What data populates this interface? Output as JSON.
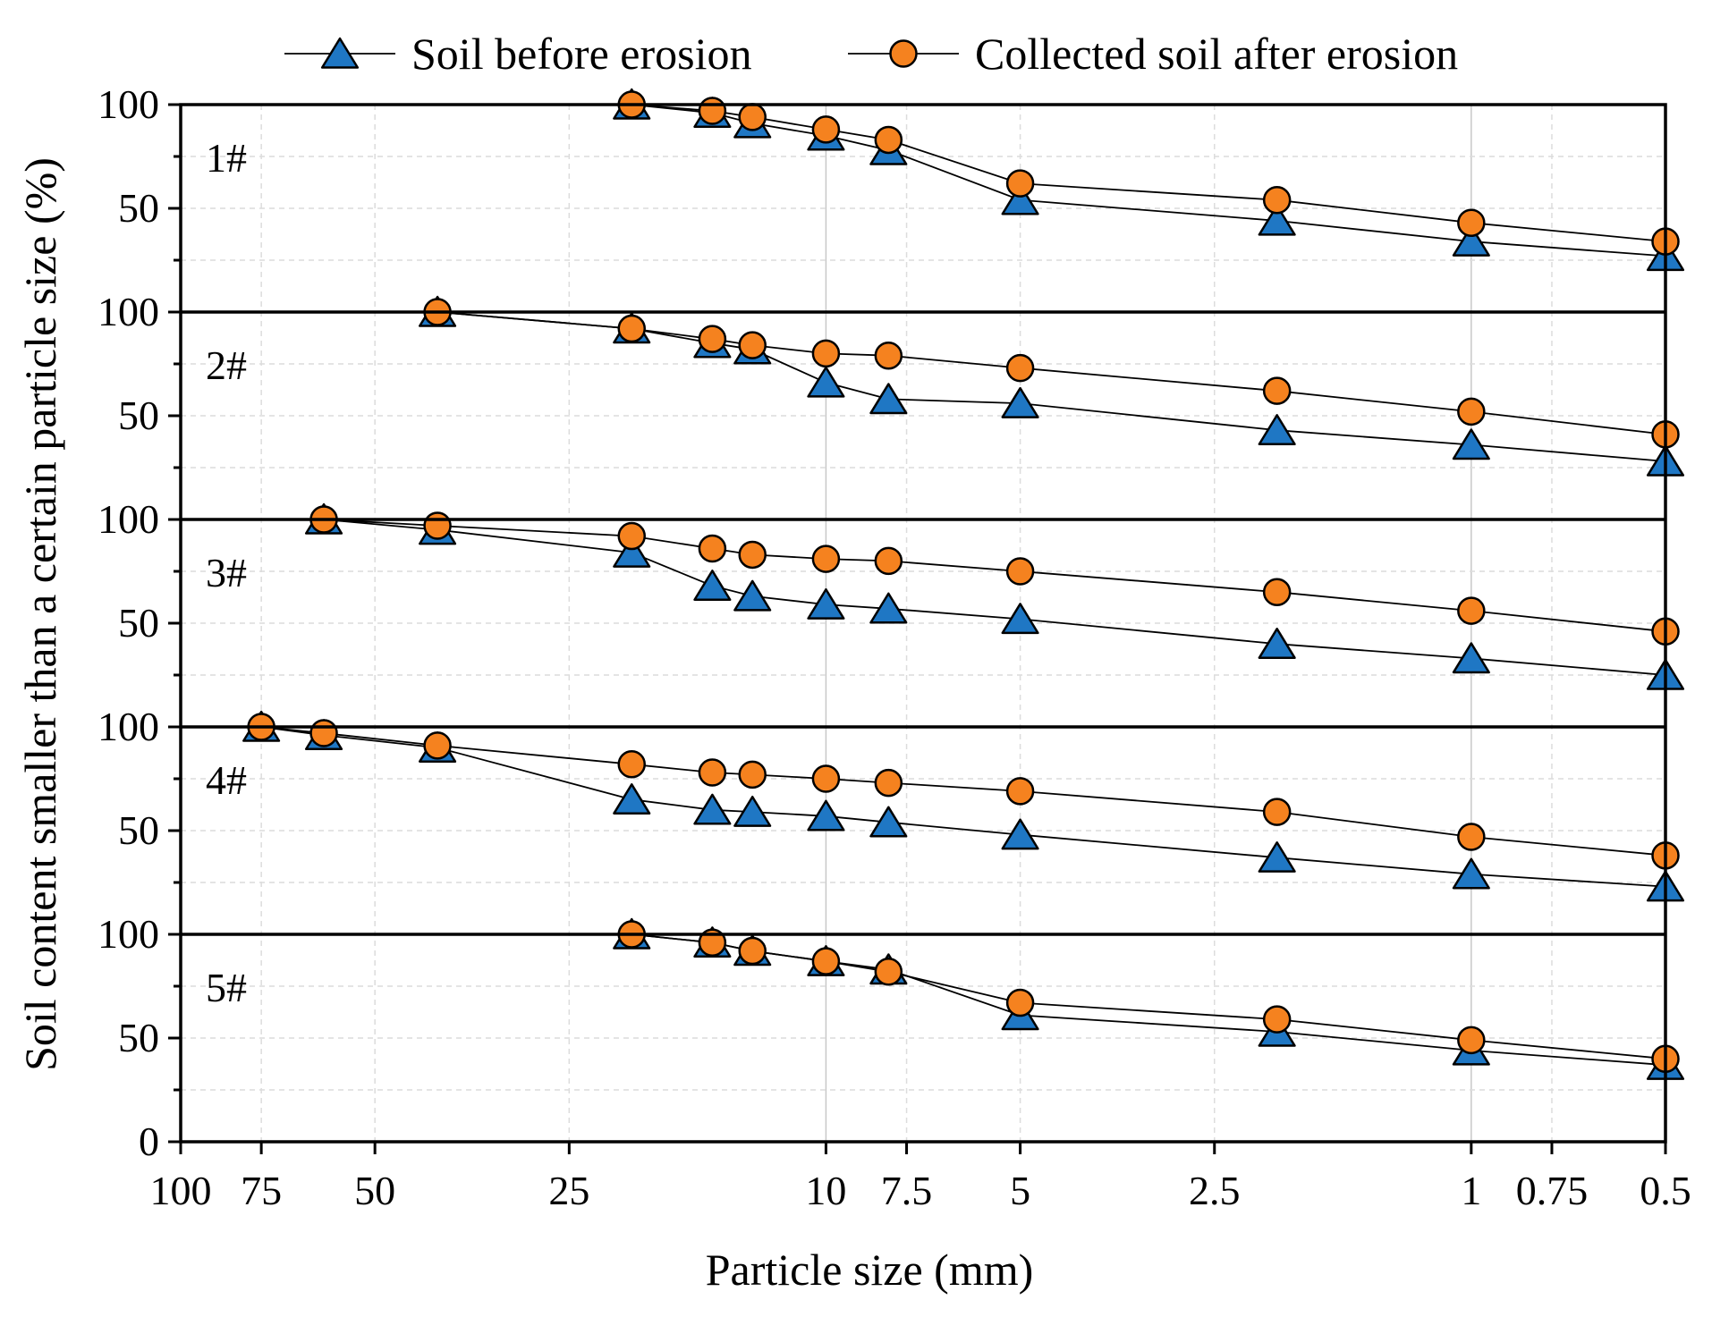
{
  "chart_data": {
    "type": "line",
    "xlabel": "Particle size (mm)",
    "ylabel": "Soil content smaller than a certain particle size (%)",
    "x_scale": "log",
    "x_reversed": true,
    "xlim": [
      100,
      0.5
    ],
    "x_ticks": [
      {
        "value": 100,
        "label": "100"
      },
      {
        "value": 75,
        "label": "75"
      },
      {
        "value": 50,
        "label": "50"
      },
      {
        "value": 25,
        "label": "25"
      },
      {
        "value": 10,
        "label": "10"
      },
      {
        "value": 7.5,
        "label": "7.5"
      },
      {
        "value": 5,
        "label": "5"
      },
      {
        "value": 2.5,
        "label": "2.5"
      },
      {
        "value": 1,
        "label": "1"
      },
      {
        "value": 0.75,
        "label": "0.75"
      },
      {
        "value": 0.5,
        "label": "0.5"
      }
    ],
    "ylim": [
      0,
      100
    ],
    "y_tick_labels": [
      "0",
      "50",
      "100"
    ],
    "grid": true,
    "legend_position": "top",
    "series_styles": [
      {
        "name": "Soil before erosion",
        "marker": "triangle",
        "color": "#1f77c4"
      },
      {
        "name": "Collected soil after erosion",
        "marker": "circle",
        "color": "#f5821f"
      }
    ],
    "panels": [
      {
        "label": "1#",
        "series": [
          {
            "name": "Soil before erosion",
            "x": [
              20,
              15,
              13,
              10,
              8,
              5,
              2,
              1,
              0.5
            ],
            "values": [
              100,
              96,
              91,
              85,
              78,
              54,
              44,
              34,
              27
            ]
          },
          {
            "name": "Collected soil after erosion",
            "x": [
              20,
              15,
              13,
              10,
              8,
              5,
              2,
              1,
              0.5
            ],
            "values": [
              100,
              97,
              94,
              88,
              83,
              62,
              54,
              43,
              34
            ]
          }
        ]
      },
      {
        "label": "2#",
        "series": [
          {
            "name": "Soil before erosion",
            "x": [
              40,
              20,
              15,
              13,
              10,
              8,
              5,
              2,
              1,
              0.5
            ],
            "values": [
              100,
              92,
              85,
              82,
              66,
              58,
              56,
              43,
              36,
              28
            ]
          },
          {
            "name": "Collected soil after erosion",
            "x": [
              40,
              20,
              15,
              13,
              10,
              8,
              5,
              2,
              1,
              0.5
            ],
            "values": [
              100,
              92,
              87,
              84,
              80,
              79,
              73,
              62,
              52,
              41
            ]
          }
        ]
      },
      {
        "label": "3#",
        "series": [
          {
            "name": "Soil before erosion",
            "x": [
              60,
              40,
              20,
              15,
              13,
              10,
              8,
              5,
              2,
              1,
              0.5
            ],
            "values": [
              100,
              95,
              84,
              68,
              63,
              59,
              57,
              52,
              40,
              33,
              25
            ]
          },
          {
            "name": "Collected soil after erosion",
            "x": [
              60,
              40,
              20,
              15,
              13,
              10,
              8,
              5,
              2,
              1,
              0.5
            ],
            "values": [
              100,
              97,
              92,
              86,
              83,
              81,
              80,
              75,
              65,
              56,
              46
            ]
          }
        ]
      },
      {
        "label": "4#",
        "series": [
          {
            "name": "Soil before erosion",
            "x": [
              75,
              60,
              40,
              20,
              15,
              13,
              10,
              8,
              5,
              2,
              1,
              0.5
            ],
            "values": [
              100,
              96,
              90,
              65,
              60,
              59,
              57,
              54,
              48,
              37,
              29,
              23
            ]
          },
          {
            "name": "Collected soil after erosion",
            "x": [
              75,
              60,
              40,
              20,
              15,
              13,
              10,
              8,
              5,
              2,
              1,
              0.5
            ],
            "values": [
              100,
              97,
              91,
              82,
              78,
              77,
              75,
              73,
              69,
              59,
              47,
              38
            ]
          }
        ]
      },
      {
        "label": "5#",
        "series": [
          {
            "name": "Soil before erosion",
            "x": [
              20,
              15,
              13,
              10,
              8,
              5,
              2,
              1,
              0.5
            ],
            "values": [
              100,
              96,
              92,
              87,
              83,
              61,
              53,
              44,
              37
            ]
          },
          {
            "name": "Collected soil after erosion",
            "x": [
              20,
              15,
              13,
              10,
              8,
              5,
              2,
              1,
              0.5
            ],
            "values": [
              100,
              96,
              92,
              87,
              82,
              67,
              59,
              49,
              40
            ]
          }
        ]
      }
    ]
  }
}
